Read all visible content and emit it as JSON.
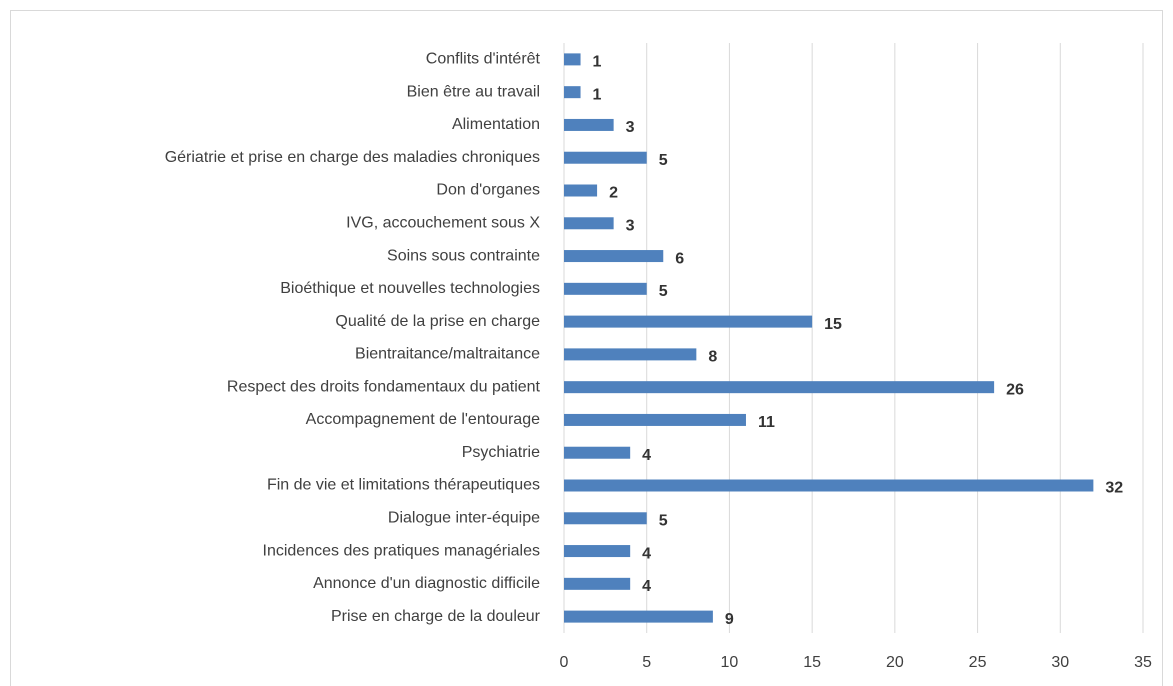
{
  "chart_data": {
    "type": "bar",
    "orientation": "horizontal",
    "categories": [
      "Conflits d'intérêt",
      "Bien être au travail",
      "Alimentation",
      "Gériatrie et prise en charge des maladies chroniques",
      "Don d'organes",
      "IVG, accouchement sous X",
      "Soins sous contrainte",
      "Bioéthique et nouvelles technologies",
      "Qualité de la prise en charge",
      "Bientraitance/maltraitance",
      "Respect des droits fondamentaux du patient",
      "Accompagnement de l'entourage",
      "Psychiatrie",
      "Fin de vie et limitations thérapeutiques",
      "Dialogue inter-équipe",
      "Incidences des pratiques managériales",
      "Annonce d'un diagnostic difficile",
      "Prise en charge de la douleur"
    ],
    "values": [
      1,
      1,
      3,
      5,
      2,
      3,
      6,
      5,
      15,
      8,
      26,
      11,
      4,
      32,
      5,
      4,
      4,
      9
    ],
    "color": "#4f81bd",
    "xlim": [
      0,
      35
    ],
    "xticks": [
      0,
      5,
      10,
      15,
      20,
      25,
      30,
      35
    ],
    "grid": true
  }
}
